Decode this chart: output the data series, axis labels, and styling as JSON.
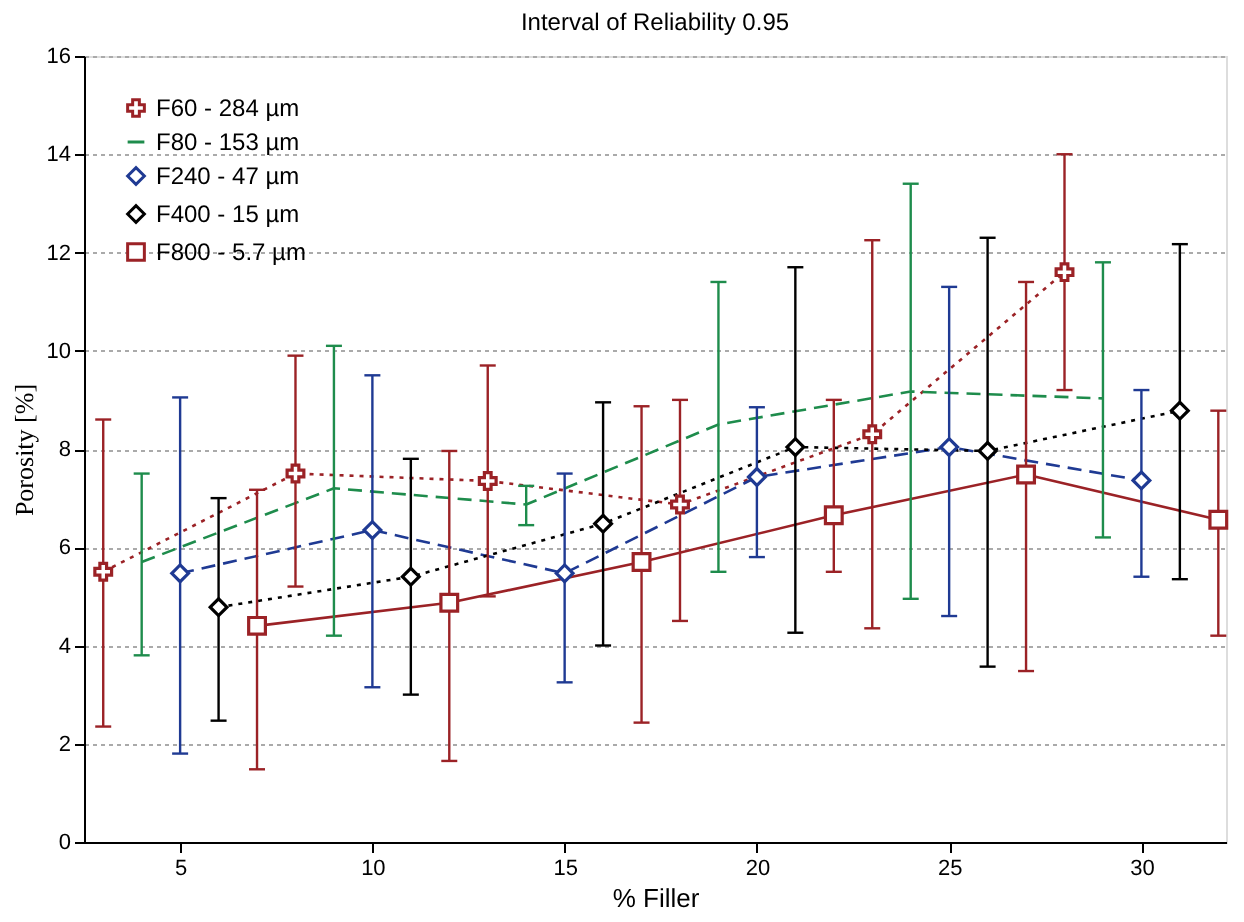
{
  "chart_data": {
    "type": "line",
    "title": "Interval of Reliability 0.95",
    "xlabel": "% Filler",
    "ylabel": "Porosity [%]",
    "xlim": [
      2.5,
      32.2
    ],
    "xticks": [
      5,
      10,
      15,
      20,
      25,
      30
    ],
    "ylim": [
      0,
      16
    ],
    "yticks": [
      0,
      2,
      4,
      6,
      8,
      10,
      12,
      14,
      16
    ],
    "grid": "y",
    "legend": "top left",
    "series": [
      {
        "name": "F60 - 284 µm",
        "color": "#9b2226",
        "marker": "cross",
        "line_style": "dotted",
        "x": [
          3,
          8,
          13,
          18,
          23,
          28
        ],
        "values": [
          5.5,
          7.5,
          7.35,
          6.87,
          8.3,
          11.6
        ],
        "errors": [
          [
            2.35,
            8.6
          ],
          [
            5.2,
            9.9
          ],
          [
            5.0,
            9.7
          ],
          [
            4.5,
            9.0
          ],
          [
            4.35,
            12.25
          ],
          [
            9.2,
            14.0
          ]
        ]
      },
      {
        "name": "F80 - 153 µm",
        "color": "#1e8c4c",
        "marker": "none",
        "line_style": "dashed",
        "x": [
          4,
          9,
          14,
          19,
          24,
          29
        ],
        "values": [
          5.7,
          7.2,
          6.87,
          8.5,
          9.17,
          9.03
        ],
        "errors": [
          [
            3.8,
            7.5
          ],
          [
            4.2,
            10.1
          ],
          [
            6.45,
            7.25
          ],
          [
            5.5,
            11.4
          ],
          [
            4.95,
            13.4
          ],
          [
            6.2,
            11.8
          ]
        ]
      },
      {
        "name": "F240 - 47 µm",
        "color": "#1f3a93",
        "marker": "diamond",
        "line_style": "dashed",
        "x": [
          5,
          10,
          15,
          20,
          25,
          30
        ],
        "values": [
          5.47,
          6.35,
          5.47,
          7.43,
          8.04,
          7.36
        ],
        "errors": [
          [
            1.8,
            9.05
          ],
          [
            3.15,
            9.5
          ],
          [
            3.25,
            7.5
          ],
          [
            5.8,
            8.85
          ],
          [
            4.6,
            11.3
          ],
          [
            5.4,
            9.2
          ]
        ]
      },
      {
        "name": "F400 - 15 µm",
        "color": "#000000",
        "marker": "diamond",
        "line_style": "dotted",
        "x": [
          6,
          11,
          16,
          21,
          26,
          31
        ],
        "values": [
          4.78,
          5.4,
          6.48,
          8.04,
          7.96,
          8.78
        ],
        "errors": [
          [
            2.47,
            7.0
          ],
          [
            3.0,
            7.8
          ],
          [
            4.0,
            8.95
          ],
          [
            4.26,
            11.7
          ],
          [
            3.57,
            12.3
          ],
          [
            5.35,
            12.17
          ]
        ]
      },
      {
        "name": "F800 - 5.7 µm",
        "color": "#9b2226",
        "marker": "square",
        "line_style": "solid",
        "x": [
          7,
          12,
          17,
          22,
          27,
          32
        ],
        "values": [
          4.4,
          4.87,
          5.7,
          6.65,
          7.48,
          6.56
        ],
        "errors": [
          [
            1.48,
            7.17
          ],
          [
            1.65,
            7.96
          ],
          [
            2.43,
            8.87
          ],
          [
            5.5,
            9.0
          ],
          [
            3.48,
            11.4
          ],
          [
            4.2,
            8.78
          ]
        ]
      }
    ]
  }
}
